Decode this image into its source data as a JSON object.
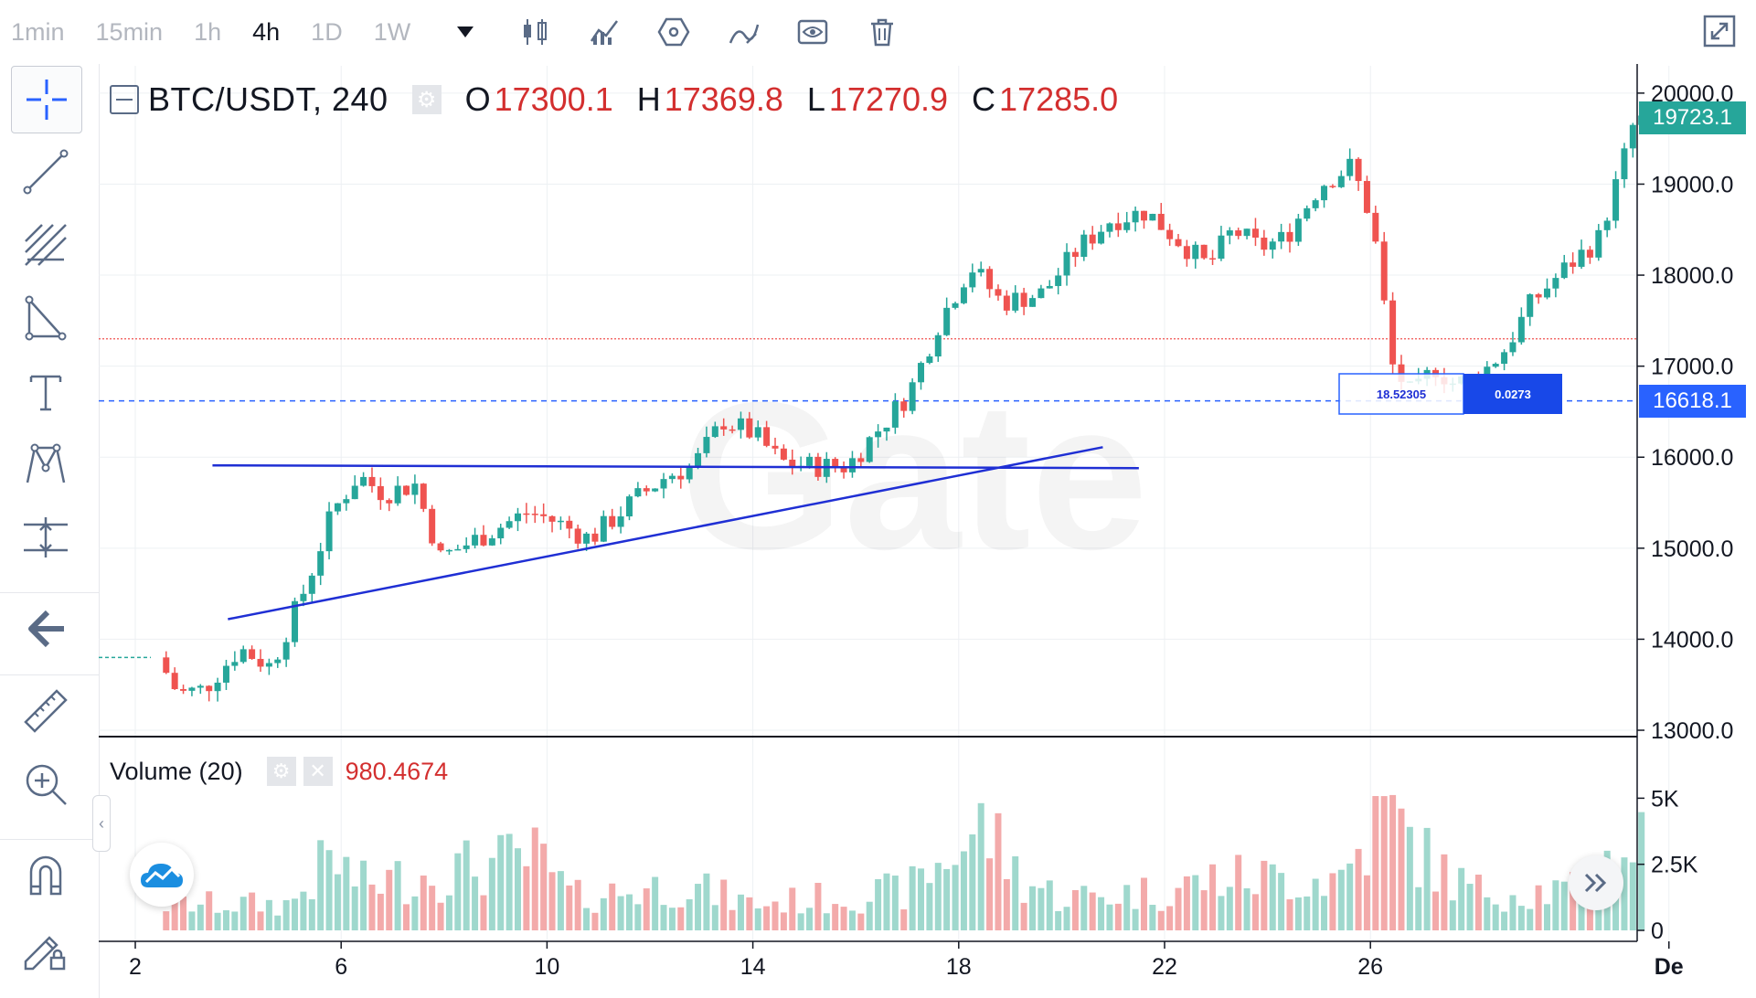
{
  "toolbar": {
    "intervals": [
      "1min",
      "15min",
      "1h",
      "4h",
      "1D",
      "1W"
    ],
    "active_interval": "4h",
    "icons": [
      "dropdown-caret-icon",
      "candles-icon",
      "indicators-icon",
      "hexagon-settings-icon",
      "draw-icon",
      "eye-icon",
      "trash-icon",
      "fullscreen-icon"
    ]
  },
  "leftbar": {
    "tools": [
      "crosshair-icon",
      "trend-line-icon",
      "fib-icon",
      "triangle-icon",
      "text-icon",
      "pattern-icon",
      "measure-icon",
      "back-arrow-icon",
      "ruler-icon",
      "zoom-in-icon",
      "magnet-icon",
      "lock-pencil-icon"
    ]
  },
  "legend": {
    "symbol": "BTC/USDT, 240",
    "o_label": "O",
    "o_value": "17300.1",
    "h_label": "H",
    "h_value": "17369.8",
    "l_label": "L",
    "l_value": "17270.9",
    "c_label": "C",
    "c_value": "17285.0"
  },
  "volume_legend": {
    "title": "Volume (20)",
    "value": "980.4674"
  },
  "measure_box": {
    "left_value": "18.52305",
    "right_value": "0.0273"
  },
  "price_tags": {
    "last": "19723.1",
    "crosshair": "16618.1"
  },
  "colors": {
    "up": "#26a69a",
    "down": "#ef5350",
    "drawing": "#1f2fd4",
    "last_tag": "#26a69a",
    "crosshair_tag": "#2962ff"
  },
  "chart_data": {
    "type": "candlestick",
    "title": "",
    "x_tick_labels": [
      "2",
      "6",
      "10",
      "14",
      "18",
      "22",
      "26",
      "De"
    ],
    "y_tick_labels": [
      "20000.0",
      "19000.0",
      "18000.0",
      "17000.0",
      "16000.0",
      "15000.0",
      "14000.0",
      "13000.0"
    ],
    "ylim": [
      12950,
      20300
    ],
    "volume_tick_labels": [
      "5K",
      "2.5K",
      "0"
    ],
    "volume_ylim": [
      0,
      6500
    ],
    "reference_lines": {
      "horizontal_red_dotted": 17300,
      "crosshair_blue_dashed": 16618.1
    },
    "trendlines": [
      {
        "from": [
          3.5,
          15910
        ],
        "to": [
          21.5,
          15880
        ]
      },
      {
        "from": [
          3.8,
          14220
        ],
        "to": [
          20.8,
          16110
        ]
      }
    ],
    "waypoints": [
      [
        2.6,
        13800
      ],
      [
        3.0,
        13400
      ],
      [
        3.5,
        13450
      ],
      [
        4.2,
        13900
      ],
      [
        4.8,
        13700
      ],
      [
        5.5,
        14600
      ],
      [
        6.0,
        15400
      ],
      [
        6.5,
        15800
      ],
      [
        7.0,
        15600
      ],
      [
        7.6,
        15700
      ],
      [
        8.1,
        14900
      ],
      [
        8.8,
        15100
      ],
      [
        9.8,
        15400
      ],
      [
        10.3,
        15300
      ],
      [
        11.0,
        15100
      ],
      [
        11.8,
        15500
      ],
      [
        12.5,
        15800
      ],
      [
        13.0,
        15900
      ],
      [
        13.6,
        16400
      ],
      [
        14.2,
        16250
      ],
      [
        14.7,
        15950
      ],
      [
        15.3,
        15900
      ],
      [
        16.0,
        15900
      ],
      [
        16.6,
        16300
      ],
      [
        17.2,
        16700
      ],
      [
        17.8,
        17500
      ],
      [
        18.4,
        18100
      ],
      [
        19.0,
        17700
      ],
      [
        19.8,
        17800
      ],
      [
        20.5,
        18300
      ],
      [
        21.1,
        18600
      ],
      [
        21.8,
        18700
      ],
      [
        22.4,
        18400
      ],
      [
        23.0,
        18100
      ],
      [
        23.5,
        18500
      ],
      [
        24.0,
        18300
      ],
      [
        24.5,
        18400
      ],
      [
        25.2,
        19000
      ],
      [
        25.8,
        19200
      ],
      [
        26.2,
        18600
      ],
      [
        26.6,
        17000
      ],
      [
        27.0,
        16650
      ],
      [
        27.4,
        17000
      ],
      [
        27.8,
        16800
      ],
      [
        28.3,
        16900
      ],
      [
        28.8,
        17200
      ],
      [
        29.3,
        17700
      ],
      [
        30.0,
        18100
      ],
      [
        30.6,
        18400
      ],
      [
        31.0,
        19100
      ],
      [
        31.3,
        19700
      ]
    ],
    "volume_profile": [
      [
        2.6,
        0.2
      ],
      [
        5.0,
        0.2
      ],
      [
        5.8,
        0.55
      ],
      [
        6.4,
        0.35
      ],
      [
        8.0,
        0.45
      ],
      [
        9.8,
        0.55
      ],
      [
        10.5,
        0.25
      ],
      [
        12.6,
        0.35
      ],
      [
        14.0,
        0.2
      ],
      [
        17.0,
        0.3
      ],
      [
        18.5,
        0.8
      ],
      [
        19.2,
        0.4
      ],
      [
        20.0,
        0.25
      ],
      [
        22.0,
        0.3
      ],
      [
        23.0,
        0.4
      ],
      [
        25.4,
        0.4
      ],
      [
        26.3,
        0.9
      ],
      [
        27.2,
        0.5
      ],
      [
        28.0,
        0.3
      ],
      [
        30.0,
        0.3
      ],
      [
        31.2,
        0.7
      ]
    ]
  }
}
